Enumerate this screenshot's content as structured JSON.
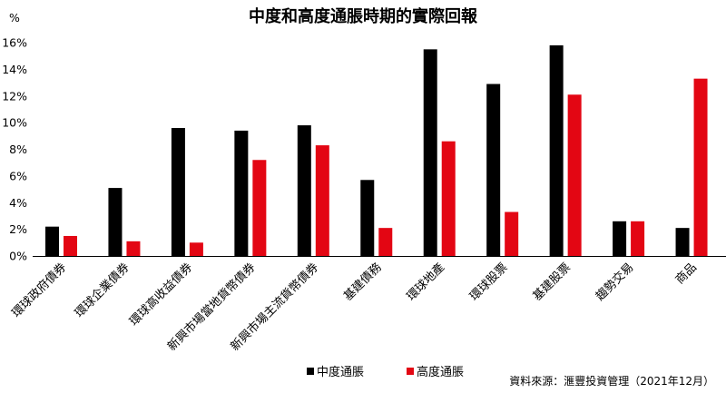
{
  "chart_data": {
    "type": "bar",
    "title": "中度和高度通脹時期的實際回報",
    "y_unit": "%",
    "ylim": [
      0,
      16
    ],
    "y_ticks": [
      "0%",
      "2%",
      "4%",
      "6%",
      "8%",
      "10%",
      "12%",
      "14%",
      "16%"
    ],
    "y_tick_values": [
      0,
      2,
      4,
      6,
      8,
      10,
      12,
      14,
      16
    ],
    "grid": false,
    "legend_position": "bottom",
    "categories": [
      "環球政府債券",
      "環球企業債券",
      "環球高收益債券",
      "新興市場當地貨幣債券",
      "新興市場主流貨幣債券",
      "基建債務",
      "環球地產",
      "環球股票",
      "基建股票",
      "趨勢交易",
      "商品"
    ],
    "series": [
      {
        "name": "中度通脹",
        "color": "#000000",
        "values": [
          2.2,
          5.1,
          9.6,
          9.4,
          9.8,
          5.7,
          15.5,
          12.9,
          15.8,
          2.6,
          2.1
        ]
      },
      {
        "name": "高度通脹",
        "color": "#e30613",
        "values": [
          1.5,
          1.1,
          1.0,
          7.2,
          8.3,
          2.1,
          8.6,
          3.3,
          12.1,
          2.6,
          13.3
        ]
      }
    ],
    "source": "資料來源：滙豐投資管理（2021年12月）"
  }
}
